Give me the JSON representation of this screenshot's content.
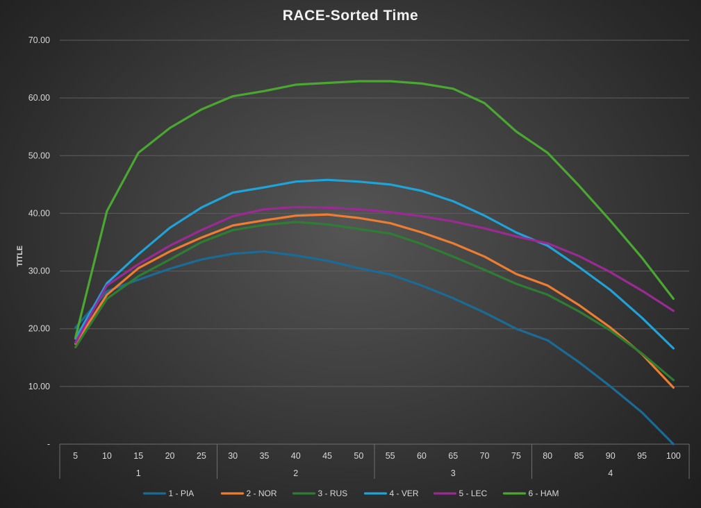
{
  "chart_data": {
    "type": "line",
    "title": "RACE-Sorted Time",
    "xlabel": "",
    "ylabel": "TITLE",
    "ylim": [
      0,
      70
    ],
    "yticks": [
      0,
      10,
      20,
      30,
      40,
      50,
      60,
      70
    ],
    "ytick_labels": [
      "-",
      "10.00",
      "20.00",
      "30.00",
      "40.00",
      "50.00",
      "60.00",
      "70.00"
    ],
    "categories": [
      "5",
      "10",
      "15",
      "20",
      "25",
      "30",
      "35",
      "40",
      "45",
      "50",
      "55",
      "60",
      "65",
      "70",
      "75",
      "80",
      "85",
      "90",
      "95",
      "100"
    ],
    "groups": [
      {
        "label": "1",
        "count": 5
      },
      {
        "label": "2",
        "count": 5
      },
      {
        "label": "3",
        "count": 5
      },
      {
        "label": "4",
        "count": 5
      }
    ],
    "grid": true,
    "legend_position": "bottom",
    "series": [
      {
        "name": "1 - PIA",
        "color": "#1a6b96",
        "values": [
          20.2,
          26.5,
          28.5,
          30.4,
          32.0,
          33.0,
          33.4,
          32.7,
          31.8,
          30.5,
          29.4,
          27.5,
          25.3,
          22.8,
          20.0,
          18.0,
          14.2,
          10.0,
          5.5,
          0.0
        ]
      },
      {
        "name": "2 - NOR",
        "color": "#ed7d31",
        "values": [
          17.4,
          25.9,
          30.5,
          33.4,
          35.8,
          37.9,
          38.8,
          39.6,
          39.8,
          39.2,
          38.3,
          36.7,
          34.8,
          32.5,
          29.5,
          27.5,
          24.1,
          20.2,
          15.6,
          9.8
        ]
      },
      {
        "name": "3 - RUS",
        "color": "#2e7d32",
        "values": [
          16.8,
          25.2,
          29.1,
          32.0,
          35.0,
          37.1,
          38.0,
          38.5,
          38.1,
          37.3,
          36.5,
          34.7,
          32.5,
          30.2,
          27.8,
          25.9,
          23.0,
          19.7,
          15.7,
          11.1
        ]
      },
      {
        "name": "4 - VER",
        "color": "#1fa3d8",
        "values": [
          18.3,
          27.9,
          32.9,
          37.5,
          41.0,
          43.6,
          44.5,
          45.5,
          45.8,
          45.5,
          45.0,
          43.9,
          42.1,
          39.6,
          36.7,
          34.4,
          30.7,
          26.7,
          21.9,
          16.6
        ]
      },
      {
        "name": "5 - LEC",
        "color": "#9b2a94",
        "values": [
          17.6,
          27.5,
          31.2,
          34.4,
          37.1,
          39.5,
          40.7,
          41.1,
          41.0,
          40.7,
          40.2,
          39.5,
          38.6,
          37.4,
          36.0,
          34.8,
          32.6,
          29.8,
          26.6,
          23.1
        ]
      },
      {
        "name": "6 - HAM",
        "color": "#4aa832",
        "values": [
          18.5,
          40.4,
          50.5,
          54.8,
          58.0,
          60.3,
          61.2,
          62.3,
          62.6,
          62.9,
          62.9,
          62.5,
          61.6,
          59.1,
          54.2,
          50.5,
          44.8,
          38.7,
          32.3,
          25.2
        ]
      }
    ]
  }
}
